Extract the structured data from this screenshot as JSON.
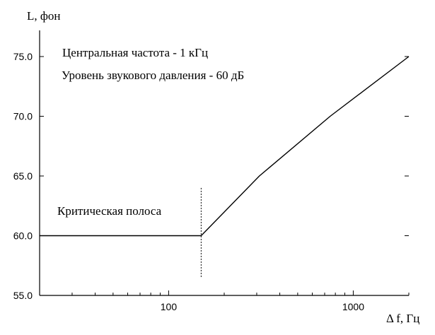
{
  "chart_data": {
    "type": "line",
    "ylabel": "L, фон",
    "xlabel": "Δ f, Гц",
    "x_scale": "log",
    "xlim": [
      20,
      2000
    ],
    "ylim": [
      55,
      75
    ],
    "x_ticks": [
      100,
      1000
    ],
    "x_tick_labels": [
      "100",
      "1000"
    ],
    "y_ticks": [
      55,
      60,
      65,
      70,
      75
    ],
    "y_tick_labels": [
      "55.0",
      "60.0",
      "65.0",
      "70.0",
      "75.0"
    ],
    "grid": false,
    "series": [
      {
        "x": [
          20,
          150,
          310,
          750,
          2000
        ],
        "y": [
          60.0,
          60.0,
          65.0,
          70.0,
          75.0
        ],
        "color": "#000000"
      }
    ],
    "annotations": [
      "Центральная частота - 1 кГц",
      "Уровень звукового давления - 60 дБ",
      "Критическая полоса"
    ],
    "critical_band_x": 150,
    "critical_band_y_range": [
      56.5,
      64.0
    ]
  }
}
